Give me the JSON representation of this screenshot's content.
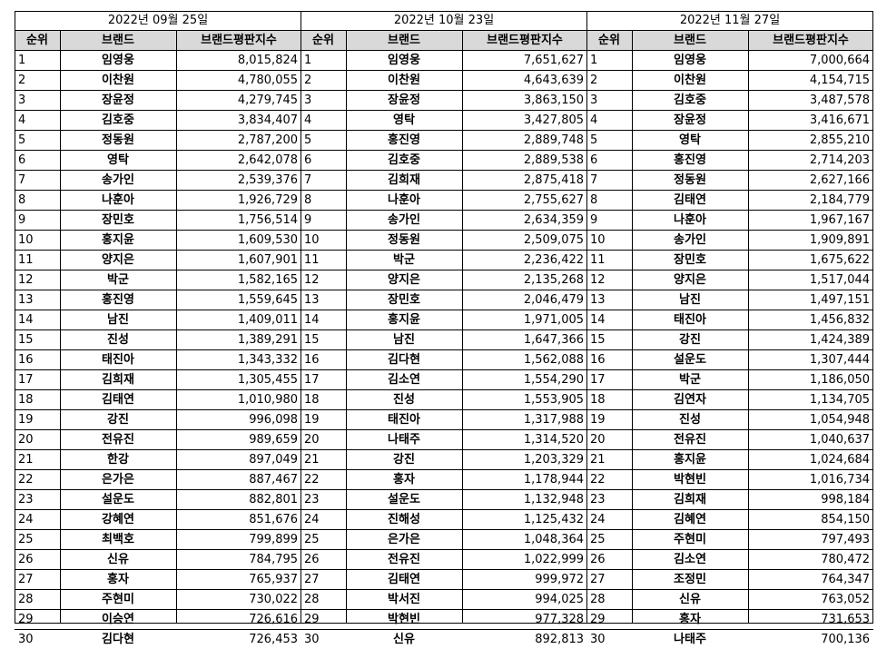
{
  "headers": {
    "rank": "순위",
    "brand": "브랜드",
    "score": "브랜드평판지수"
  },
  "panels": [
    {
      "date": "2022년 09월 25일",
      "rows": [
        [
          "1",
          "임영웅",
          "8,015,824"
        ],
        [
          "2",
          "이찬원",
          "4,780,055"
        ],
        [
          "3",
          "장윤정",
          "4,279,745"
        ],
        [
          "4",
          "김호중",
          "3,834,407"
        ],
        [
          "5",
          "정동원",
          "2,787,200"
        ],
        [
          "6",
          "영탁",
          "2,642,078"
        ],
        [
          "7",
          "송가인",
          "2,539,376"
        ],
        [
          "8",
          "나훈아",
          "1,926,729"
        ],
        [
          "9",
          "장민호",
          "1,756,514"
        ],
        [
          "10",
          "홍지윤",
          "1,609,530"
        ],
        [
          "11",
          "양지은",
          "1,607,901"
        ],
        [
          "12",
          "박군",
          "1,582,165"
        ],
        [
          "13",
          "홍진영",
          "1,559,645"
        ],
        [
          "14",
          "남진",
          "1,409,011"
        ],
        [
          "15",
          "진성",
          "1,389,291"
        ],
        [
          "16",
          "태진아",
          "1,343,332"
        ],
        [
          "17",
          "김희재",
          "1,305,455"
        ],
        [
          "18",
          "김태연",
          "1,010,980"
        ],
        [
          "19",
          "강진",
          "996,098"
        ],
        [
          "20",
          "전유진",
          "989,659"
        ],
        [
          "21",
          "한강",
          "897,049"
        ],
        [
          "22",
          "은가은",
          "887,467"
        ],
        [
          "23",
          "설운도",
          "882,801"
        ],
        [
          "24",
          "강혜연",
          "851,676"
        ],
        [
          "25",
          "최백호",
          "799,899"
        ],
        [
          "26",
          "신유",
          "784,795"
        ],
        [
          "27",
          "홍자",
          "765,937"
        ],
        [
          "28",
          "주현미",
          "730,022"
        ],
        [
          "29",
          "이승연",
          "726,616"
        ],
        [
          "30",
          "김다현",
          "726,453"
        ]
      ]
    },
    {
      "date": "2022년 10월 23일",
      "rows": [
        [
          "1",
          "임영웅",
          "7,651,627"
        ],
        [
          "2",
          "이찬원",
          "4,643,639"
        ],
        [
          "3",
          "장윤정",
          "3,863,150"
        ],
        [
          "4",
          "영탁",
          "3,427,805"
        ],
        [
          "5",
          "홍진영",
          "2,889,748"
        ],
        [
          "6",
          "김호중",
          "2,889,538"
        ],
        [
          "7",
          "김희재",
          "2,875,418"
        ],
        [
          "8",
          "나훈아",
          "2,755,627"
        ],
        [
          "9",
          "송가인",
          "2,634,359"
        ],
        [
          "10",
          "정동원",
          "2,509,075"
        ],
        [
          "11",
          "박군",
          "2,236,422"
        ],
        [
          "12",
          "양지은",
          "2,135,268"
        ],
        [
          "13",
          "장민호",
          "2,046,479"
        ],
        [
          "14",
          "홍지윤",
          "1,971,005"
        ],
        [
          "15",
          "남진",
          "1,647,366"
        ],
        [
          "16",
          "김다현",
          "1,562,088"
        ],
        [
          "17",
          "김소연",
          "1,554,290"
        ],
        [
          "18",
          "진성",
          "1,553,905"
        ],
        [
          "19",
          "태진아",
          "1,317,988"
        ],
        [
          "20",
          "나태주",
          "1,314,520"
        ],
        [
          "21",
          "강진",
          "1,203,329"
        ],
        [
          "22",
          "홍자",
          "1,178,944"
        ],
        [
          "23",
          "설운도",
          "1,132,948"
        ],
        [
          "24",
          "진해성",
          "1,125,432"
        ],
        [
          "25",
          "은가은",
          "1,048,364"
        ],
        [
          "26",
          "전유진",
          "1,022,999"
        ],
        [
          "27",
          "김태연",
          "999,972"
        ],
        [
          "28",
          "박서진",
          "994,025"
        ],
        [
          "29",
          "박현빈",
          "977,328"
        ],
        [
          "30",
          "신유",
          "892,813"
        ]
      ]
    },
    {
      "date": "2022년 11월 27일",
      "rows": [
        [
          "1",
          "임영웅",
          "7,000,664"
        ],
        [
          "2",
          "이찬원",
          "4,154,715"
        ],
        [
          "3",
          "김호중",
          "3,487,578"
        ],
        [
          "4",
          "장윤정",
          "3,416,671"
        ],
        [
          "5",
          "영탁",
          "2,855,210"
        ],
        [
          "6",
          "홍진영",
          "2,714,203"
        ],
        [
          "7",
          "정동원",
          "2,627,166"
        ],
        [
          "8",
          "김태연",
          "2,184,779"
        ],
        [
          "9",
          "나훈아",
          "1,967,167"
        ],
        [
          "10",
          "송가인",
          "1,909,891"
        ],
        [
          "11",
          "장민호",
          "1,675,622"
        ],
        [
          "12",
          "양지은",
          "1,517,044"
        ],
        [
          "13",
          "남진",
          "1,497,151"
        ],
        [
          "14",
          "태진아",
          "1,456,832"
        ],
        [
          "15",
          "강진",
          "1,424,389"
        ],
        [
          "16",
          "설운도",
          "1,307,444"
        ],
        [
          "17",
          "박군",
          "1,186,050"
        ],
        [
          "18",
          "김연자",
          "1,134,705"
        ],
        [
          "19",
          "진성",
          "1,054,948"
        ],
        [
          "20",
          "전유진",
          "1,040,637"
        ],
        [
          "21",
          "홍지윤",
          "1,024,684"
        ],
        [
          "22",
          "박현빈",
          "1,016,734"
        ],
        [
          "23",
          "김희재",
          "998,184"
        ],
        [
          "24",
          "김혜연",
          "854,150"
        ],
        [
          "25",
          "주현미",
          "797,493"
        ],
        [
          "26",
          "김소연",
          "780,472"
        ],
        [
          "27",
          "조정민",
          "764,347"
        ],
        [
          "28",
          "신유",
          "763,052"
        ],
        [
          "29",
          "홍자",
          "731,653"
        ],
        [
          "30",
          "나태주",
          "700,136"
        ]
      ]
    }
  ]
}
